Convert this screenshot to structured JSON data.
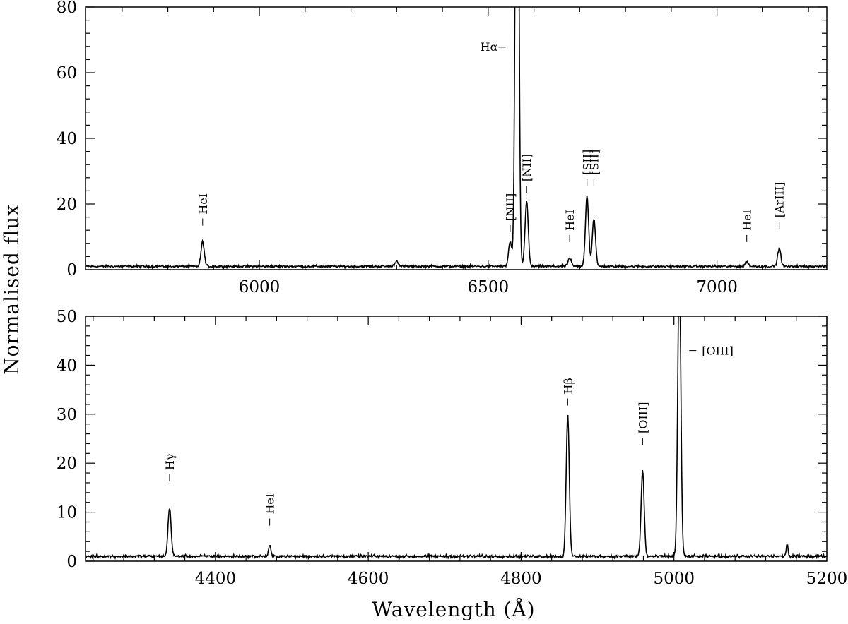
{
  "ylabel": "Normalised flux",
  "xlabel": "Wavelength (Å)",
  "chart_data": [
    {
      "type": "line",
      "panel": "top",
      "xlim": [
        5620,
        7240
      ],
      "ylim": [
        0,
        80
      ],
      "x_ticks": [
        6000,
        6500,
        7000
      ],
      "y_ticks": [
        0,
        20,
        40,
        60,
        80
      ],
      "continuum": 1.0,
      "series": [
        {
          "lines": [
            {
              "x": 5876,
              "peak": 7.5,
              "width": 3.5
            },
            {
              "x": 6300,
              "peak": 1.6,
              "width": 4
            },
            {
              "x": 6548,
              "peak": 7.5,
              "width": 3.5
            },
            {
              "x": 6563,
              "peak": 200,
              "width": 3.5
            },
            {
              "x": 6584,
              "peak": 20,
              "width": 3.5
            },
            {
              "x": 6678,
              "peak": 2.5,
              "width": 3.5
            },
            {
              "x": 6716,
              "peak": 21.5,
              "width": 3.5
            },
            {
              "x": 6731,
              "peak": 14.5,
              "width": 3.5
            },
            {
              "x": 7065,
              "peak": 1.5,
              "width": 3.5
            },
            {
              "x": 7136,
              "peak": 5.5,
              "width": 3.5
            }
          ]
        }
      ],
      "annotations": [
        {
          "text": "HeI",
          "x": 5876,
          "y": 16,
          "rotated": true
        },
        {
          "text": "Hα",
          "x": 6563,
          "y": 68,
          "rotated": false
        },
        {
          "text": "[NII]",
          "x": 6548,
          "y": 14,
          "rotated": true
        },
        {
          "text": "[NII]",
          "x": 6584,
          "y": 26,
          "rotated": true
        },
        {
          "text": "HeI",
          "x": 6678,
          "y": 11,
          "rotated": true
        },
        {
          "text": "[SII]",
          "x": 6716,
          "y": 28,
          "rotated": true
        },
        {
          "text": "[SII]",
          "x": 6731,
          "y": 28,
          "rotated": true
        },
        {
          "text": "HeI",
          "x": 7065,
          "y": 11,
          "rotated": true
        },
        {
          "text": "[ArIII]",
          "x": 7136,
          "y": 15,
          "rotated": true
        }
      ]
    },
    {
      "type": "line",
      "panel": "bottom",
      "xlim": [
        4230,
        5200
      ],
      "ylim": [
        0,
        50
      ],
      "x_ticks": [
        4400,
        4600,
        4800,
        5000,
        5200
      ],
      "y_ticks": [
        0,
        10,
        20,
        30,
        40,
        50
      ],
      "continuum": 1.0,
      "series": [
        {
          "lines": [
            {
              "x": 4340,
              "peak": 10,
              "width": 2.0
            },
            {
              "x": 4471,
              "peak": 2.2,
              "width": 1.5
            },
            {
              "x": 4861,
              "peak": 28.8,
              "width": 2.0
            },
            {
              "x": 4959,
              "peak": 17.5,
              "width": 2.0
            },
            {
              "x": 5007,
              "peak": 60,
              "width": 2.0
            },
            {
              "x": 5148,
              "peak": 2.5,
              "width": 1.2
            }
          ]
        }
      ],
      "annotations": [
        {
          "text": "Hγ",
          "x": 4340,
          "y": 18,
          "rotated": true
        },
        {
          "text": "HeI",
          "x": 4471,
          "y": 9,
          "rotated": true
        },
        {
          "text": "Hβ",
          "x": 4861,
          "y": 33.5,
          "rotated": true
        },
        {
          "text": "[OIII]",
          "x": 4959,
          "y": 25.5,
          "rotated": true
        },
        {
          "text": "[OIII]",
          "x": 5007,
          "y": 43,
          "rotated": false
        }
      ]
    }
  ]
}
